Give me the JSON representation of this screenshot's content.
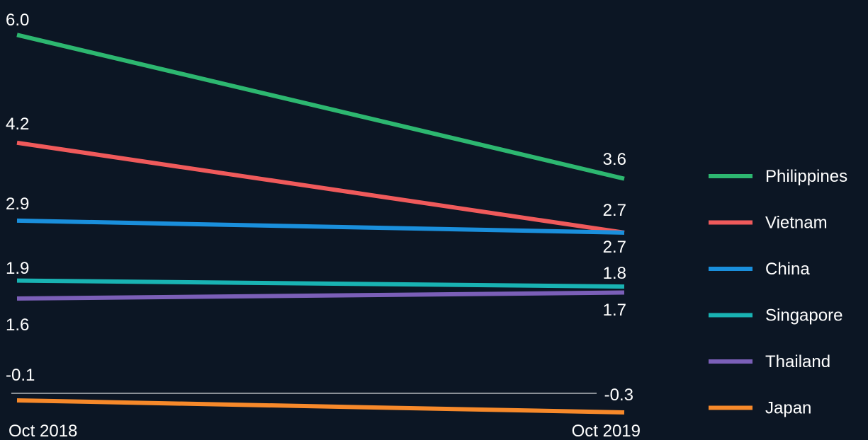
{
  "chart_data": {
    "type": "line",
    "x": [
      "Oct 2018",
      "Oct 2019"
    ],
    "series": [
      {
        "name": "Philippines",
        "values": [
          6.0,
          3.6
        ],
        "labels": [
          "6.0",
          "3.6"
        ],
        "color": "#2db770"
      },
      {
        "name": "Vietnam",
        "values": [
          4.2,
          2.7
        ],
        "labels": [
          "4.2",
          "2.7"
        ],
        "color": "#f05a5b"
      },
      {
        "name": "China",
        "values": [
          2.9,
          2.7
        ],
        "labels": [
          "2.9",
          "2.7"
        ],
        "color": "#1a8fdc"
      },
      {
        "name": "Singapore",
        "values": [
          1.9,
          1.8
        ],
        "labels": [
          "1.9",
          "1.8"
        ],
        "color": "#19b3b3"
      },
      {
        "name": "Thailand",
        "values": [
          1.6,
          1.7
        ],
        "labels": [
          "1.6",
          "1.7"
        ],
        "color": "#7b5fb8"
      },
      {
        "name": "Japan",
        "values": [
          -0.1,
          -0.3
        ],
        "labels": [
          "-0.1",
          "-0.3"
        ],
        "color": "#f7892a"
      }
    ],
    "zero_line": true,
    "zero_line_color": "#8a8f96",
    "legend": "right",
    "grid": false
  }
}
